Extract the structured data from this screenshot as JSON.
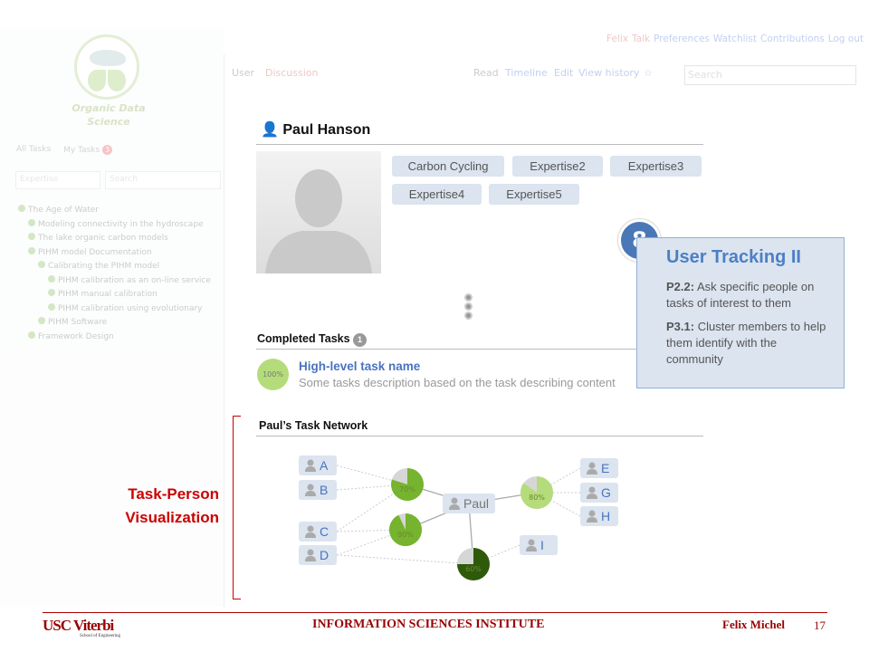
{
  "sidebar": {
    "logo_text": "Organic Data Science",
    "tabs": [
      "All Tasks",
      "My Tasks"
    ],
    "my_tasks_count": "3",
    "expertise_placeholder": "Expertise",
    "search_placeholder": "Search",
    "tree": [
      {
        "label": "The Age of Water",
        "level": 0
      },
      {
        "label": "Modeling connectivity in the hydroscape",
        "level": 1
      },
      {
        "label": "The lake organic carbon models",
        "level": 1
      },
      {
        "label": "PIHM model Documentation",
        "level": 1
      },
      {
        "label": "Calibrating the PIHM model",
        "level": 2
      },
      {
        "label": "PIHM calibration as an on-line service",
        "level": 3
      },
      {
        "label": "PIHM manual calibration",
        "level": 3
      },
      {
        "label": "PIHM calibration using evolutionary",
        "level": 3
      },
      {
        "label": "PIHM Software",
        "level": 2
      },
      {
        "label": "Framework Design",
        "level": 1
      }
    ]
  },
  "topnav": {
    "user": "Felix",
    "links": [
      "Talk",
      "Preferences",
      "Watchlist",
      "Contributions",
      "Log out"
    ]
  },
  "tabs": {
    "left": [
      "User",
      "Discussion"
    ],
    "right": [
      "Read",
      "Timeline",
      "Edit",
      "View history"
    ],
    "search_placeholder": "Search"
  },
  "profile": {
    "name": "Paul Hanson",
    "expertise": [
      "Carbon Cycling",
      "Expertise2",
      "Expertise3",
      "Expertise4",
      "Expertise5"
    ]
  },
  "completed": {
    "title": "Completed Tasks",
    "count": "1",
    "task": {
      "name": "High-level task name",
      "description": "Some tasks description based on the task describing content",
      "progress": "100%"
    }
  },
  "network": {
    "title": "Paul’s Task Network",
    "center": "Paul",
    "people": [
      "A",
      "B",
      "C",
      "D",
      "E",
      "G",
      "H",
      "I"
    ],
    "tasks": [
      {
        "progress": "70%",
        "value": 0.8,
        "color": "#76b32e"
      },
      {
        "progress": "90%",
        "value": 0.93,
        "color": "#76b32e"
      },
      {
        "progress": "80%",
        "value": 0.85,
        "color": "#b5dc7a"
      },
      {
        "progress": "60%",
        "value": 0.75,
        "color": "#2e5a0a"
      }
    ]
  },
  "callout": {
    "number": "8",
    "title": "User Tracking II",
    "items": [
      {
        "code": "P2.2:",
        "text": "Ask specific people on tasks of interest to them"
      },
      {
        "code": "P3.1:",
        "text": "Cluster members to help them identify with the community"
      }
    ]
  },
  "annotation": {
    "line1": "Task-Person",
    "line2": "Visualization"
  },
  "footer": {
    "logo": "USC Viterbi",
    "logo_sub": "School of Engineering",
    "institute": "INFORMATION SCIENCES INSTITUTE",
    "author": "Felix Michel",
    "page": "17"
  }
}
